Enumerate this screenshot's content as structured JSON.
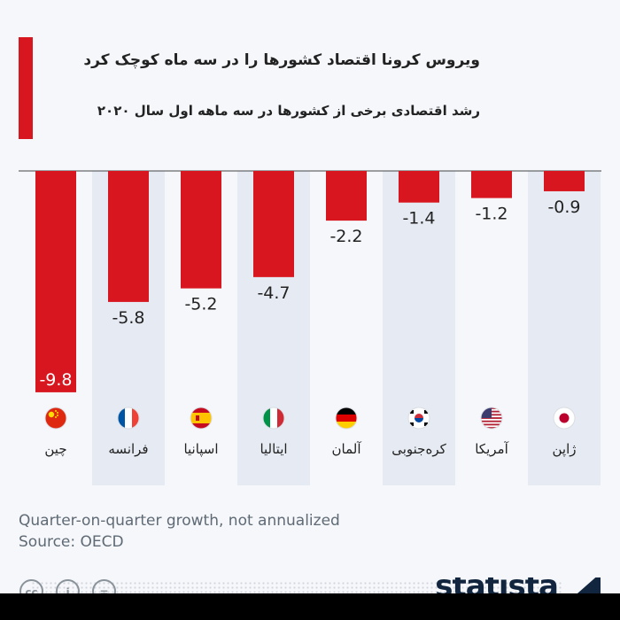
{
  "header": {
    "title": "ویروس کرونا اقتصاد کشورها را در سه ماه کوچک کرد",
    "subtitle": "رشد اقتصادی برخی از کشورها در سه ماهه اول سال ۲۰۲۰"
  },
  "colors": {
    "accent": "#d7161f",
    "bar": "#d7161f",
    "band": "#e6ebf3",
    "text": "#222222",
    "muted": "#5f6a75",
    "brand": "#11253e"
  },
  "chart_data": {
    "type": "bar",
    "title": "ویروس کرونا اقتصاد کشورها را در سه ماه کوچک کرد",
    "subtitle": "رشد اقتصادی برخی از کشورها در سه ماهه اول سال ۲۰۲۰",
    "categories": [
      "چین",
      "فرانسه",
      "اسپانیا",
      "ایتالیا",
      "آلمان",
      "کره‌جنوبی",
      "آمریکا",
      "ژاپن"
    ],
    "values": [
      -9.8,
      -5.8,
      -5.2,
      -4.7,
      -2.2,
      -1.4,
      -1.2,
      -0.9
    ],
    "value_labels": [
      "-9.8",
      "-5.8",
      "-5.2",
      "-4.7",
      "-2.2",
      "-1.4",
      "-1.2",
      "-0.9"
    ],
    "flags": [
      "china-flag-icon",
      "france-flag-icon",
      "spain-flag-icon",
      "italy-flag-icon",
      "germany-flag-icon",
      "south-korea-flag-icon",
      "usa-flag-icon",
      "japan-flag-icon"
    ],
    "ylim": [
      -10,
      0
    ],
    "grid": false,
    "legend": "none"
  },
  "footer": {
    "note": "Quarter-on-quarter growth, not annualized",
    "source": "Source: OECD",
    "brand": "statista",
    "cc_icons": [
      "cc-icon",
      "by-icon",
      "equal-icon"
    ]
  }
}
